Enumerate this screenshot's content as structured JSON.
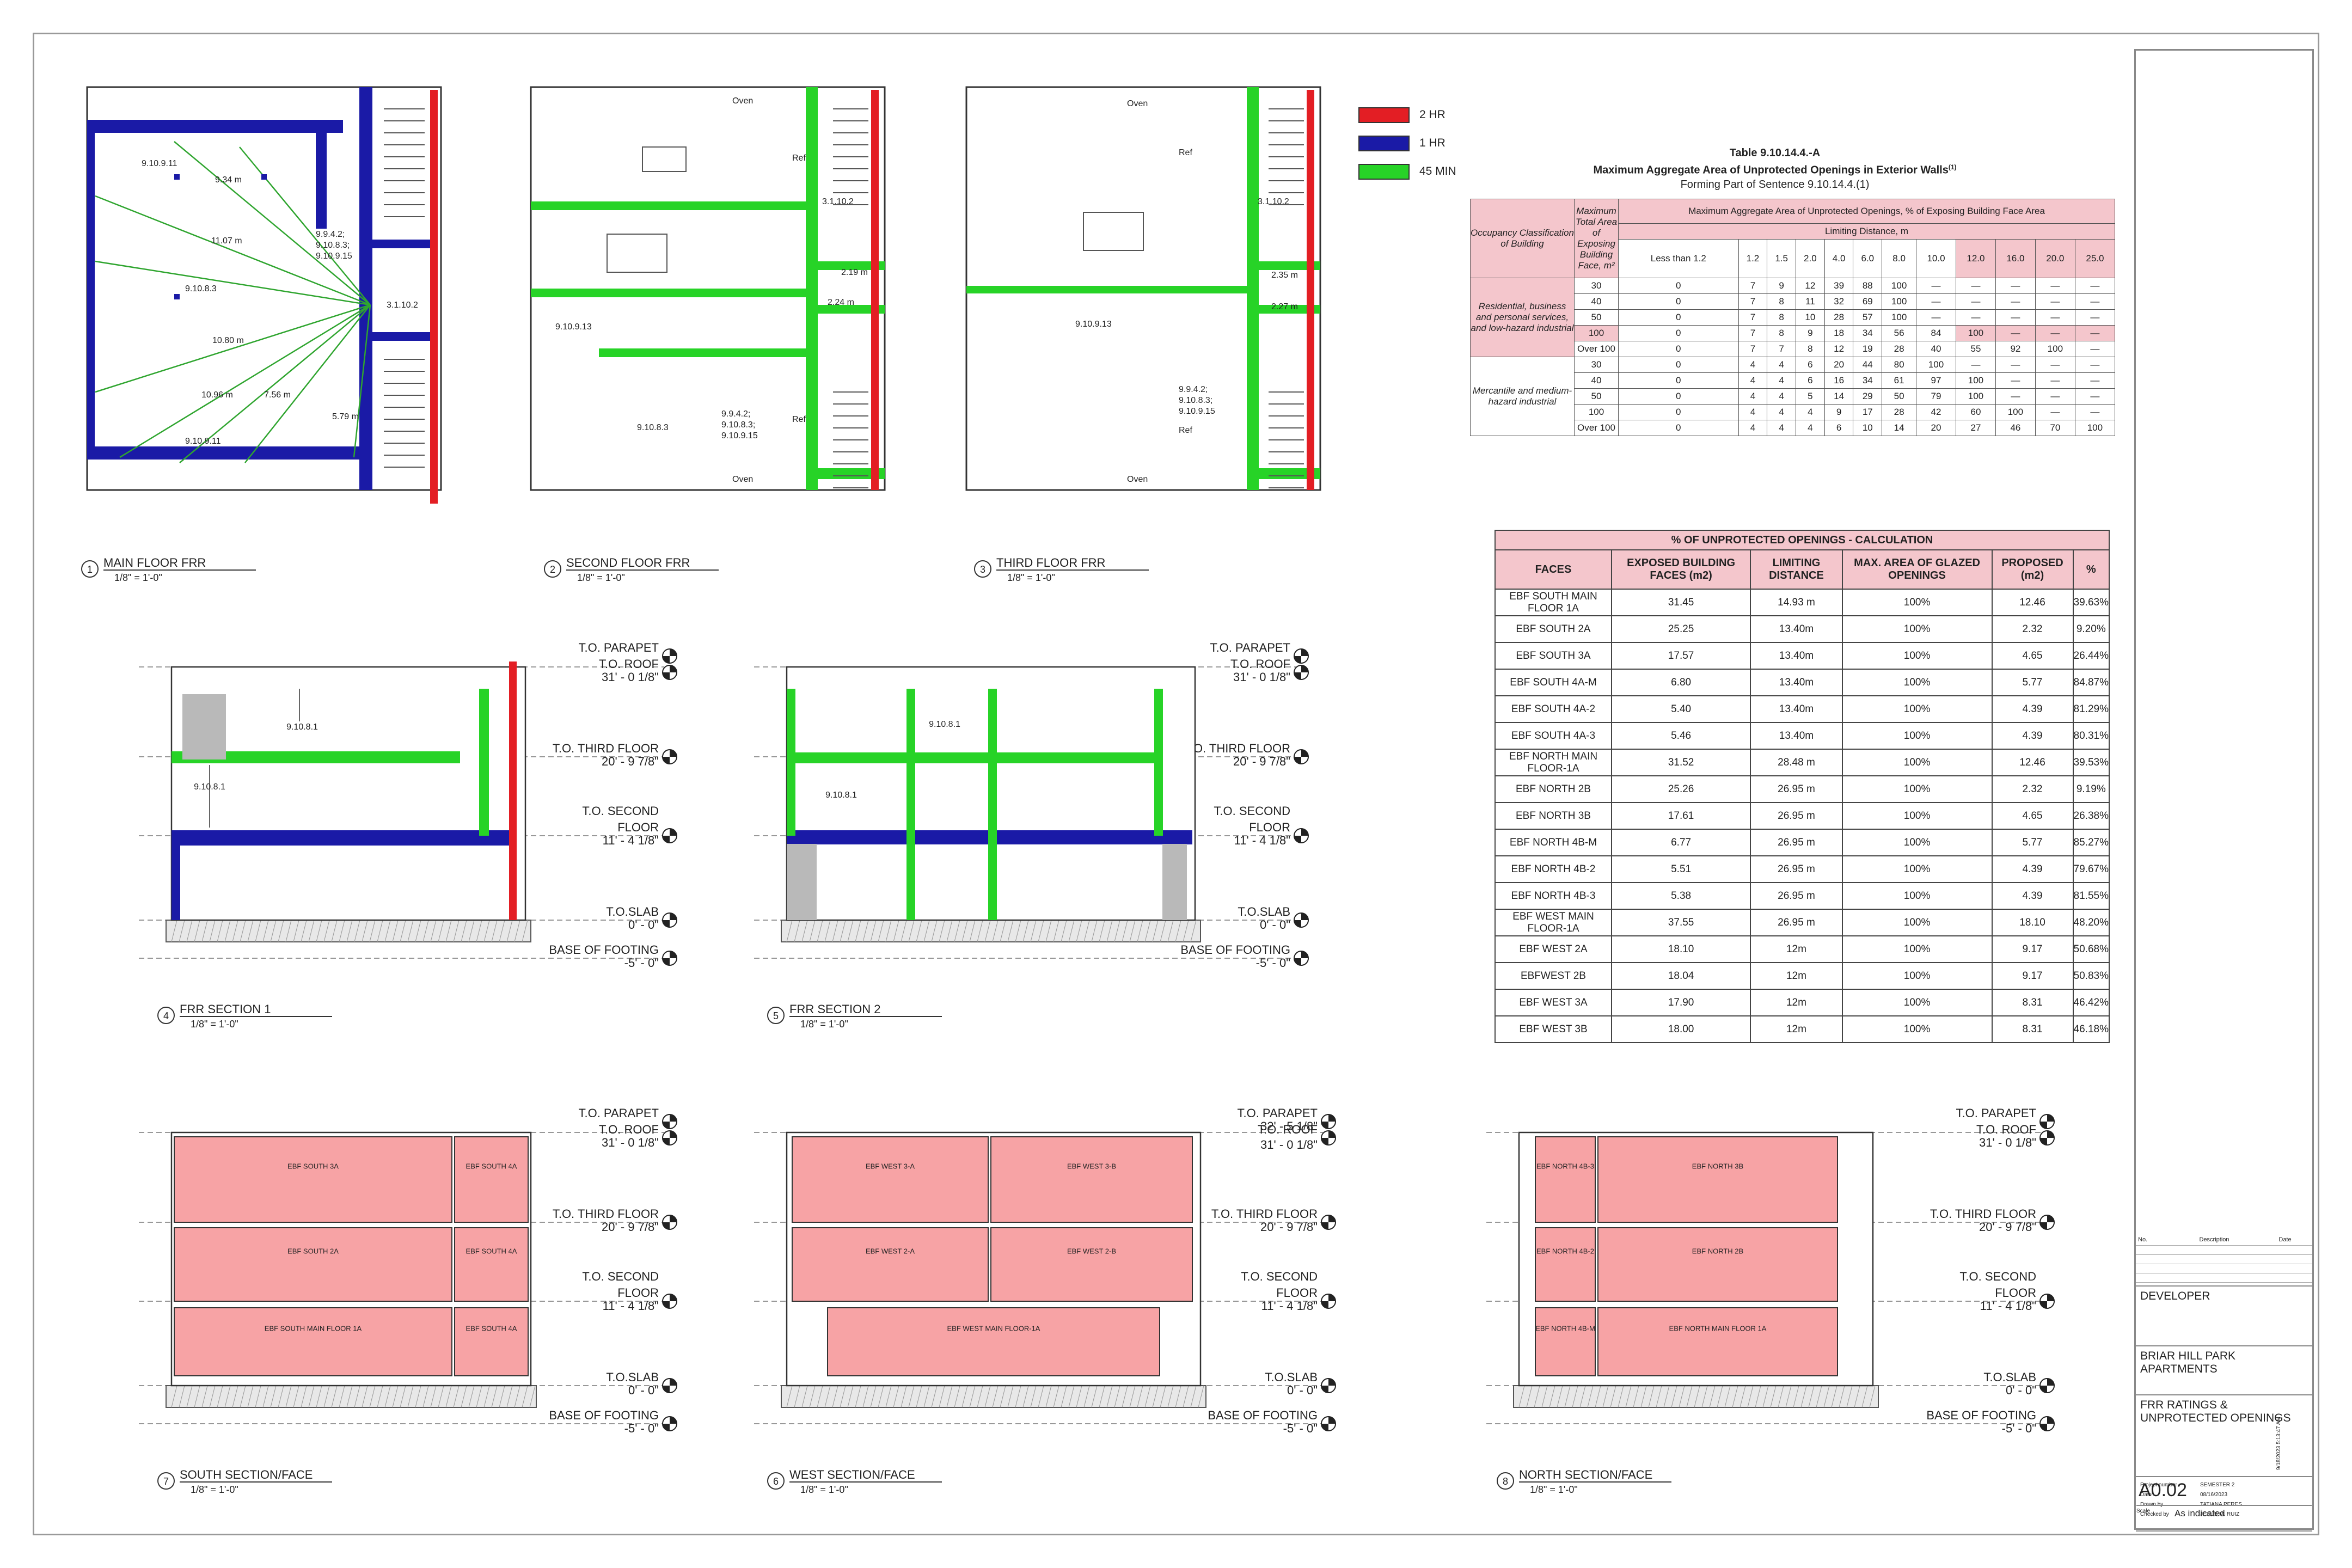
{
  "legend": [
    {
      "label": "2 HR",
      "color": "#e31e24"
    },
    {
      "label": "1 HR",
      "color": "#1a1aa6"
    },
    {
      "label": "45 MIN",
      "color": "#27d327"
    }
  ],
  "colors": {
    "pink_face": "#f7a3a5",
    "pink_header": "#f4c6cc",
    "line": "#333333"
  },
  "views": [
    {
      "num": "1",
      "title": "MAIN FLOOR FRR",
      "scale": "1/8\" = 1'-0\""
    },
    {
      "num": "2",
      "title": "SECOND FLOOR FRR",
      "scale": "1/8\" = 1'-0\""
    },
    {
      "num": "3",
      "title": "THIRD FLOOR FRR",
      "scale": "1/8\" = 1'-0\""
    },
    {
      "num": "4",
      "title": "FRR SECTION 1",
      "scale": "1/8\" = 1'-0\""
    },
    {
      "num": "5",
      "title": "FRR SECTION 2",
      "scale": "1/8\" = 1'-0\""
    },
    {
      "num": "7",
      "title": "SOUTH SECTION/FACE",
      "scale": "1/8\" = 1'-0\""
    },
    {
      "num": "6",
      "title": "WEST SECTION/FACE",
      "scale": "1/8\" = 1'-0\""
    },
    {
      "num": "8",
      "title": "NORTH SECTION/FACE",
      "scale": "1/8\" = 1'-0\""
    }
  ],
  "levels": {
    "parapet": "T.O. PARAPET",
    "roof": "T.O. ROOF",
    "roof_elev": "31' - 0 1/8\"",
    "parapet_elev_west": "32' - 5 1/8\"",
    "third": "T.O. THIRD FLOOR",
    "third_elev": "20' - 9 7/8\"",
    "second_a": "T.O. SECOND",
    "second_b": "FLOOR",
    "second_elev": "11' - 4 1/8\"",
    "slab": "T.O.SLAB",
    "slab_elev": "0' - 0\"",
    "footing": "BASE OF FOOTING",
    "footing_elev": "-5' - 0\""
  },
  "plan_labels": {
    "main": [
      "9.10.9.11",
      "9.34 m",
      "11.07 m",
      "9.9.4.2;",
      "9.10.8.3;",
      "9.10.9.15",
      "9.10.8.3",
      "3.1.10.2",
      "10.80 m",
      "10.96 m",
      "7.56 m",
      "5.79 m",
      "9.10.9.11"
    ],
    "second": [
      "Oven",
      "Ref",
      "3.1.10.2",
      "2.19 m",
      "2.24 m",
      "9.10.9.13",
      "9.9.4.2;",
      "9.10.8.3;",
      "9.10.9.15",
      "9.10.8.3",
      "Ref",
      "Oven"
    ],
    "third": [
      "Oven",
      "Ref",
      "3.1.10.2",
      "2.35 m",
      "2.27 m",
      "9.10.9.13",
      "9.9.4.2;",
      "9.10.8.3;",
      "9.10.9.15",
      "Ref",
      "Oven"
    ]
  },
  "section_labels": {
    "s1": [
      "9.10.8.1",
      "9.10.8.1"
    ],
    "s2": [
      "9.10.8.1",
      "9.10.8.1"
    ]
  },
  "faces": {
    "south": [
      "EBF SOUTH 3A",
      "EBF SOUTH 4A",
      "EBF SOUTH 2A",
      "EBF SOUTH 4A",
      "EBF SOUTH MAIN FLOOR 1A",
      "EBF SOUTH 4A"
    ],
    "west": [
      "EBF WEST 3-A",
      "EBF WEST 3-B",
      "EBF WEST 2-A",
      "EBF WEST 2-B",
      "EBF WEST MAIN FLOOR-1A"
    ],
    "north": [
      "EBF NORTH 4B-3",
      "EBF NORTH 3B",
      "EBF NORTH 4B-2",
      "EBF NORTH 2B",
      "EBF NORTH 4B-M",
      "EBF NORTH MAIN FLOOR 1A"
    ]
  },
  "code_table": {
    "title": "Table 9.10.14.4.-A",
    "subtitle": "Maximum Aggregate Area of Unprotected Openings in Exterior Walls",
    "footnote_mark": "(1)",
    "forming": "Forming Part of Sentence 9.10.14.4.(1)",
    "occ_header": "Occupancy Classification of Building",
    "area_header": "Maximum Total Area of Exposing Building Face, m²",
    "span_header1": "Maximum Aggregate Area of Unprotected Openings, % of Exposing Building Face Area",
    "span_header2": "Limiting Distance, m",
    "distances": [
      "Less than 1.2",
      "1.2",
      "1.5",
      "2.0",
      "4.0",
      "6.0",
      "8.0",
      "10.0",
      "12.0",
      "16.0",
      "20.0",
      "25.0"
    ],
    "groups": [
      {
        "label": "Residential, business and personal services, and low-hazard industrial",
        "rows": [
          [
            "30",
            "0",
            "7",
            "9",
            "12",
            "39",
            "88",
            "100",
            "—",
            "—",
            "—",
            "—",
            "—"
          ],
          [
            "40",
            "0",
            "7",
            "8",
            "11",
            "32",
            "69",
            "100",
            "—",
            "—",
            "—",
            "—",
            "—"
          ],
          [
            "50",
            "0",
            "7",
            "8",
            "10",
            "28",
            "57",
            "100",
            "—",
            "—",
            "—",
            "—",
            "—"
          ],
          [
            "100",
            "0",
            "7",
            "8",
            "9",
            "18",
            "34",
            "56",
            "84",
            "100",
            "—",
            "—",
            "—"
          ],
          [
            "Over 100",
            "0",
            "7",
            "7",
            "8",
            "12",
            "19",
            "28",
            "40",
            "55",
            "92",
            "100",
            "—"
          ]
        ]
      },
      {
        "label": "Mercantile and medium-hazard industrial",
        "rows": [
          [
            "30",
            "0",
            "4",
            "4",
            "6",
            "20",
            "44",
            "80",
            "100",
            "—",
            "—",
            "—",
            "—"
          ],
          [
            "40",
            "0",
            "4",
            "4",
            "6",
            "16",
            "34",
            "61",
            "97",
            "100",
            "—",
            "—",
            "—"
          ],
          [
            "50",
            "0",
            "4",
            "4",
            "5",
            "14",
            "29",
            "50",
            "79",
            "100",
            "—",
            "—",
            "—"
          ],
          [
            "100",
            "0",
            "4",
            "4",
            "4",
            "9",
            "17",
            "28",
            "42",
            "60",
            "100",
            "—",
            "—"
          ],
          [
            "Over 100",
            "0",
            "4",
            "4",
            "4",
            "6",
            "10",
            "14",
            "20",
            "27",
            "46",
            "70",
            "100"
          ]
        ]
      }
    ]
  },
  "calc_table": {
    "title": "% OF UNPROTECTED OPENINGS - CALCULATION",
    "headers": [
      "FACES",
      "EXPOSED BUILDING FACES (m2)",
      "LIMITING DISTANCE",
      "MAX. AREA OF GLAZED OPENINGS",
      "PROPOSED (m2)",
      "%"
    ],
    "rows": [
      [
        "EBF SOUTH MAIN FLOOR 1A",
        "31.45",
        "14.93 m",
        "100%",
        "12.46",
        "39.63%"
      ],
      [
        "EBF SOUTH 2A",
        "25.25",
        "13.40m",
        "100%",
        "2.32",
        "9.20%"
      ],
      [
        "EBF SOUTH 3A",
        "17.57",
        "13.40m",
        "100%",
        "4.65",
        "26.44%"
      ],
      [
        "EBF SOUTH 4A-M",
        "6.80",
        "13.40m",
        "100%",
        "5.77",
        "84.87%"
      ],
      [
        "EBF SOUTH 4A-2",
        "5.40",
        "13.40m",
        "100%",
        "4.39",
        "81.29%"
      ],
      [
        "EBF SOUTH 4A-3",
        "5.46",
        "13.40m",
        "100%",
        "4.39",
        "80.31%"
      ],
      [
        "EBF NORTH MAIN FLOOR-1A",
        "31.52",
        "28.48 m",
        "100%",
        "12.46",
        "39.53%"
      ],
      [
        "EBF NORTH 2B",
        "25.26",
        "26.95 m",
        "100%",
        "2.32",
        "9.19%"
      ],
      [
        "EBF NORTH 3B",
        "17.61",
        "26.95 m",
        "100%",
        "4.65",
        "26.38%"
      ],
      [
        "EBF NORTH 4B-M",
        "6.77",
        "26.95 m",
        "100%",
        "5.77",
        "85.27%"
      ],
      [
        "EBF NORTH 4B-2",
        "5.51",
        "26.95 m",
        "100%",
        "4.39",
        "79.67%"
      ],
      [
        "EBF NORTH 4B-3",
        "5.38",
        "26.95 m",
        "100%",
        "4.39",
        "81.55%"
      ],
      [
        "EBF WEST MAIN FLOOR-1A",
        "37.55",
        "26.95 m",
        "100%",
        "18.10",
        "48.20%"
      ],
      [
        "EBF WEST 2A",
        "18.10",
        "12m",
        "100%",
        "9.17",
        "50.68%"
      ],
      [
        "EBFWEST 2B",
        "18.04",
        "12m",
        "100%",
        "9.17",
        "50.83%"
      ],
      [
        "EBF WEST 3A",
        "17.90",
        "12m",
        "100%",
        "8.31",
        "46.42%"
      ],
      [
        "EBF WEST 3B",
        "18.00",
        "12m",
        "100%",
        "8.31",
        "46.18%"
      ]
    ]
  },
  "title_block": {
    "rev_headers": [
      "No.",
      "Description",
      "Date"
    ],
    "developer": "DEVELOPER",
    "project": "BRIAR HILL PARK APARTMENTS",
    "sheet_title": "FRR RATINGS & UNPROTECTED OPENINGS",
    "meta": [
      {
        "k": "Project number",
        "v": "SEMESTER 2"
      },
      {
        "k": "Date",
        "v": "08/16/2023"
      },
      {
        "k": "Drawn by",
        "v": "TATIANA PERES"
      },
      {
        "k": "Checked by",
        "v": "JESUS M. RUIZ"
      }
    ],
    "sheet_number": "A0.02",
    "scale_label": "Scale",
    "scale_value": "As indicated",
    "stamp": "9/18/2023 5:13:47 AM"
  }
}
